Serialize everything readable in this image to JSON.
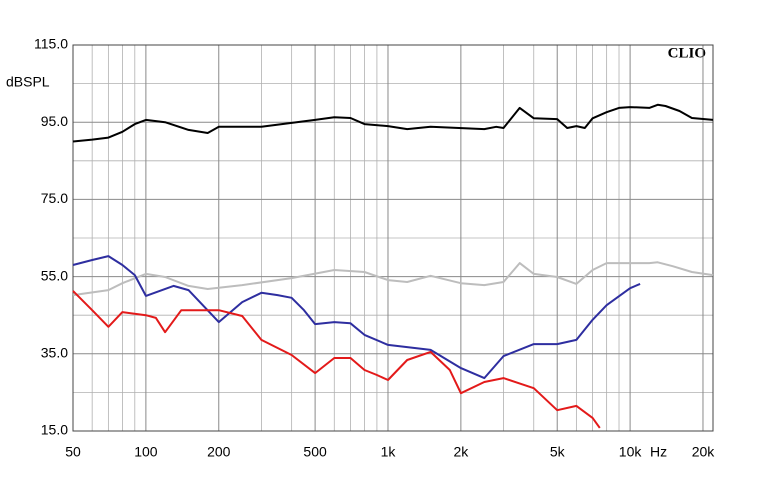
{
  "chart_data": {
    "type": "line",
    "log_x": true,
    "annotation": "CLIO",
    "ylabel": "dBSPL",
    "xlabel": "Hz",
    "xlim": [
      50,
      22000
    ],
    "ylim": [
      15,
      115
    ],
    "xticks": [
      50,
      100,
      200,
      500,
      {
        "value": 1000,
        "label": "1k"
      },
      {
        "value": 2000,
        "label": "2k"
      },
      {
        "value": 5000,
        "label": "5k"
      },
      {
        "value": 10000,
        "label": "10k"
      },
      {
        "value": 20000,
        "label": "20k"
      }
    ],
    "yticks": [
      {
        "value": 15,
        "label": "15.0"
      },
      {
        "value": 35,
        "label": "35.0"
      },
      {
        "value": 55,
        "label": "55.0"
      },
      {
        "value": 75,
        "label": "75.0"
      },
      {
        "value": 95,
        "label": "95.0"
      },
      {
        "value": 115,
        "label": "115.0"
      }
    ],
    "grid": true,
    "x_minor_grid": [
      60,
      70,
      80,
      90,
      300,
      400,
      600,
      700,
      800,
      900,
      3000,
      4000,
      6000,
      7000,
      8000,
      9000
    ],
    "y_minor_grid": [
      25,
      45,
      65,
      85,
      105
    ],
    "series": [
      {
        "color": "#000000",
        "x": [
          50,
          60,
          70,
          80,
          90,
          100,
          120,
          150,
          180,
          200,
          300,
          500,
          600,
          700,
          800,
          1000,
          1200,
          1500,
          2500,
          2800,
          3000,
          3500,
          4000,
          5000,
          5500,
          6000,
          6500,
          7000,
          8000,
          9000,
          10000,
          12000,
          13000,
          14000,
          16000,
          18000,
          22000
        ],
        "values": [
          90,
          90.5,
          91,
          92.5,
          94.5,
          95.6,
          95,
          93,
          92.2,
          93.8,
          93.8,
          95.6,
          96.3,
          96.1,
          94.5,
          94,
          93.2,
          93.8,
          93.2,
          93.8,
          93.5,
          98.7,
          96,
          95.8,
          93.5,
          94,
          93.5,
          96,
          97.6,
          98.7,
          98.9,
          98.7,
          99.5,
          99.2,
          97.9,
          96.1,
          95.6
        ]
      },
      {
        "color": "#bdbdbd",
        "x": [
          50,
          70,
          80,
          100,
          120,
          150,
          180,
          250,
          400,
          600,
          800,
          1000,
          1200,
          1500,
          2000,
          2500,
          3000,
          3500,
          4000,
          5000,
          6000,
          7000,
          8000,
          10000,
          12000,
          13000,
          15000,
          18000,
          22000
        ],
        "values": [
          50.2,
          51.5,
          53.3,
          55.7,
          54.9,
          52.6,
          51.8,
          52.8,
          54.6,
          56.7,
          56.2,
          54.1,
          53.6,
          55.2,
          53.3,
          52.8,
          53.6,
          58.5,
          55.7,
          54.9,
          53.1,
          56.7,
          58.5,
          58.5,
          58.5,
          58.7,
          57.7,
          56.2,
          55.4
        ]
      },
      {
        "color": "#2e2ea0",
        "x": [
          50,
          60,
          70,
          80,
          90,
          100,
          130,
          150,
          200,
          250,
          300,
          350,
          400,
          450,
          500,
          600,
          700,
          800,
          1000,
          1500,
          2000,
          2500,
          3000,
          4000,
          5000,
          6000,
          7000,
          8000,
          10000,
          11000
        ],
        "values": [
          58,
          59.3,
          60.3,
          58,
          55.4,
          50,
          52.6,
          51.5,
          43.2,
          48.4,
          50.8,
          50.2,
          49.5,
          46.3,
          42.7,
          43.2,
          42.9,
          39.9,
          37.3,
          36,
          31.3,
          28.7,
          34.4,
          37.5,
          37.5,
          38.6,
          43.8,
          47.6,
          52,
          53.1
        ]
      },
      {
        "color": "#e31a1a",
        "x": [
          50,
          60,
          70,
          80,
          100,
          110,
          120,
          140,
          200,
          250,
          300,
          400,
          500,
          600,
          700,
          800,
          900,
          1000,
          1200,
          1500,
          1800,
          2000,
          2500,
          3000,
          4000,
          5000,
          6000,
          7000,
          7500
        ],
        "values": [
          51.3,
          46.3,
          42,
          45.8,
          45,
          44.3,
          40.6,
          46.3,
          46.3,
          44.8,
          38.6,
          34.7,
          30,
          33.9,
          33.9,
          30.8,
          29.5,
          28.2,
          33.4,
          35.5,
          30.8,
          24.8,
          27.7,
          28.7,
          26.1,
          20.4,
          21.5,
          18.4,
          15.8
        ]
      }
    ]
  }
}
